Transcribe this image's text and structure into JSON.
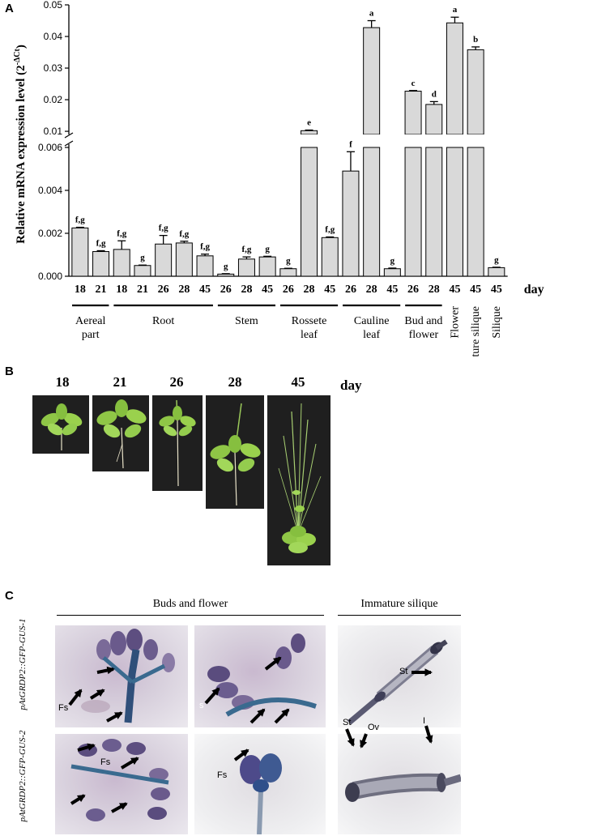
{
  "panels": {
    "a": "A",
    "b": "B",
    "c": "C"
  },
  "chart_data": {
    "type": "bar",
    "ylabel": "Relative mRNA expression level (2",
    "ylabel_sup": "-ΔCt",
    "ylabel_close": ")",
    "xlabel": "day",
    "y_ticks_lower": [
      "0.000",
      "0.002",
      "0.004",
      "0.006"
    ],
    "y_ticks_upper": [
      "0.01",
      "0.02",
      "0.03",
      "0.04",
      "0.05"
    ],
    "categories": [
      "18",
      "21",
      "18",
      "21",
      "26",
      "28",
      "45",
      "26",
      "28",
      "45",
      "26",
      "28",
      "45",
      "26",
      "28",
      "45",
      "26",
      "28",
      "45",
      "45",
      "45"
    ],
    "values": [
      0.00225,
      0.00115,
      0.00125,
      0.0005,
      0.0015,
      0.00155,
      0.00095,
      0.0001,
      0.0008,
      0.0009,
      0.00035,
      0.0102,
      0.0018,
      0.0049,
      0.0428,
      0.00035,
      0.0227,
      0.0185,
      0.0443,
      0.0358,
      0.0004
    ],
    "errors": [
      3e-05,
      4e-05,
      0.0004,
      2e-05,
      0.0004,
      8e-05,
      8e-05,
      2e-05,
      0.0001,
      3e-05,
      2e-05,
      0.0002,
      3e-05,
      0.0009,
      0.0022,
      3e-05,
      0.0002,
      0.0009,
      0.0018,
      0.0009,
      2e-05
    ],
    "letters": [
      "f,g",
      "f,g",
      "f,g",
      "g",
      "f,g",
      "f,g",
      "f,g",
      "g",
      "f,g",
      "g",
      "g",
      "e",
      "f,g",
      "f",
      "a",
      "g",
      "c",
      "d",
      "a",
      "b",
      "g"
    ],
    "groups": [
      {
        "label": [
          "Aereal",
          "part"
        ],
        "from": 0,
        "to": 1
      },
      {
        "label": [
          "Root"
        ],
        "from": 2,
        "to": 6
      },
      {
        "label": [
          "Stem"
        ],
        "from": 7,
        "to": 9
      },
      {
        "label": [
          "Rossete",
          "leaf"
        ],
        "from": 10,
        "to": 12
      },
      {
        "label": [
          "Cauline",
          "leaf"
        ],
        "from": 13,
        "to": 15
      },
      {
        "label": [
          "Bud and",
          "flower"
        ],
        "from": 16,
        "to": 17
      }
    ],
    "rotated_groups": [
      {
        "label": "Flower",
        "index": 18
      },
      {
        "label": "Immature silique",
        "index": 19
      },
      {
        "label": "Silique",
        "index": 20
      }
    ],
    "axis_break": {
      "lower": [
        0,
        0.006
      ],
      "upper": [
        0.009,
        0.05
      ]
    }
  },
  "panel_b": {
    "day_label": "day",
    "days": [
      "18",
      "21",
      "26",
      "28",
      "45"
    ]
  },
  "panel_c": {
    "header_buds": "Buds and flower",
    "header_silique": "Immature silique",
    "row1_label": "pAtGRDP2::GFP-GUS-1",
    "row2_label": "pAtGRDP2::GFP-GUS-2",
    "labels": {
      "fs": "Fs",
      "s": "s",
      "st": "St",
      "ov": "Ov",
      "i": "I"
    }
  },
  "colors": {
    "bar_fill": "#d9d9d9",
    "stain": "#3b2f6a"
  }
}
